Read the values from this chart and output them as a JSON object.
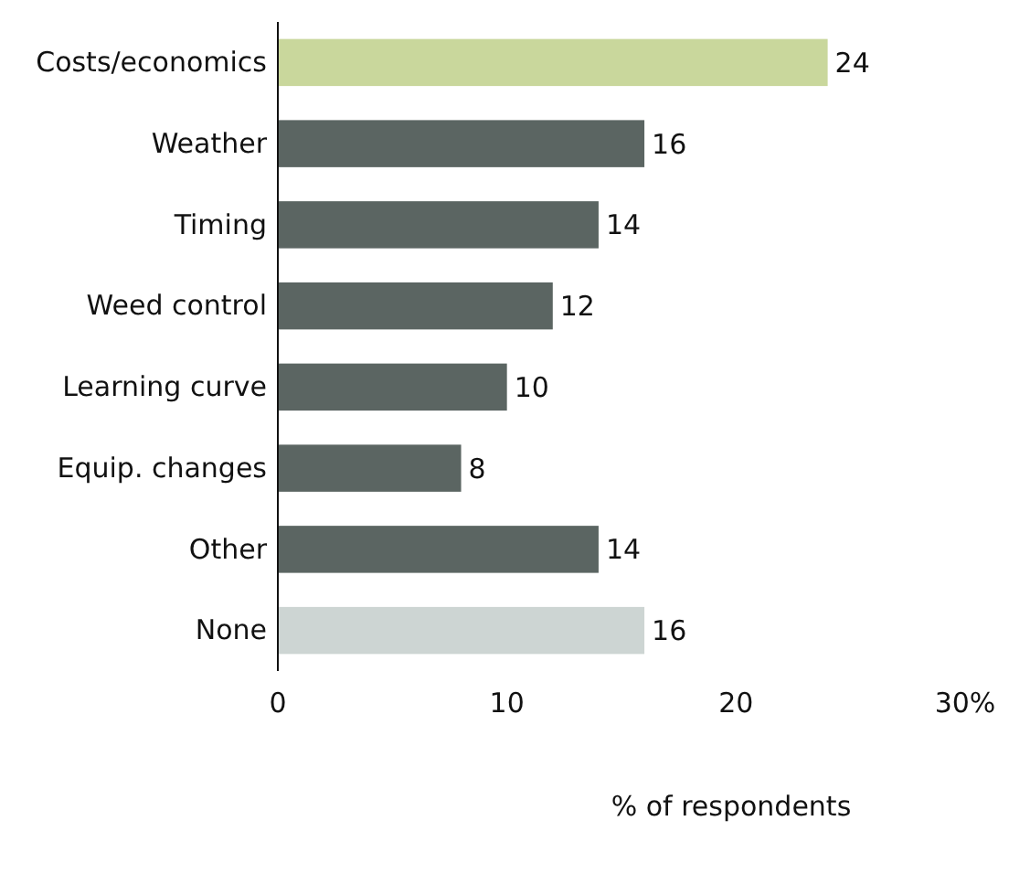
{
  "chart_data": {
    "type": "bar",
    "orientation": "horizontal",
    "xlabel": "% of respondents",
    "categories": [
      "Costs/economics",
      "Weather",
      "Timing",
      "Weed control",
      "Learning curve",
      "Equip. changes",
      "Other",
      "None"
    ],
    "values": [
      24,
      16,
      14,
      12,
      10,
      8,
      14,
      16
    ],
    "colors": [
      "#c9d79c",
      "#5b6562",
      "#5b6562",
      "#5b6562",
      "#5b6562",
      "#5b6562",
      "#5b6562",
      "#cdd5d3"
    ],
    "xlim": [
      0,
      30
    ],
    "xticks": [
      0,
      10,
      20,
      {
        "value": 30,
        "label": "30%"
      }
    ],
    "data_labels": true
  }
}
